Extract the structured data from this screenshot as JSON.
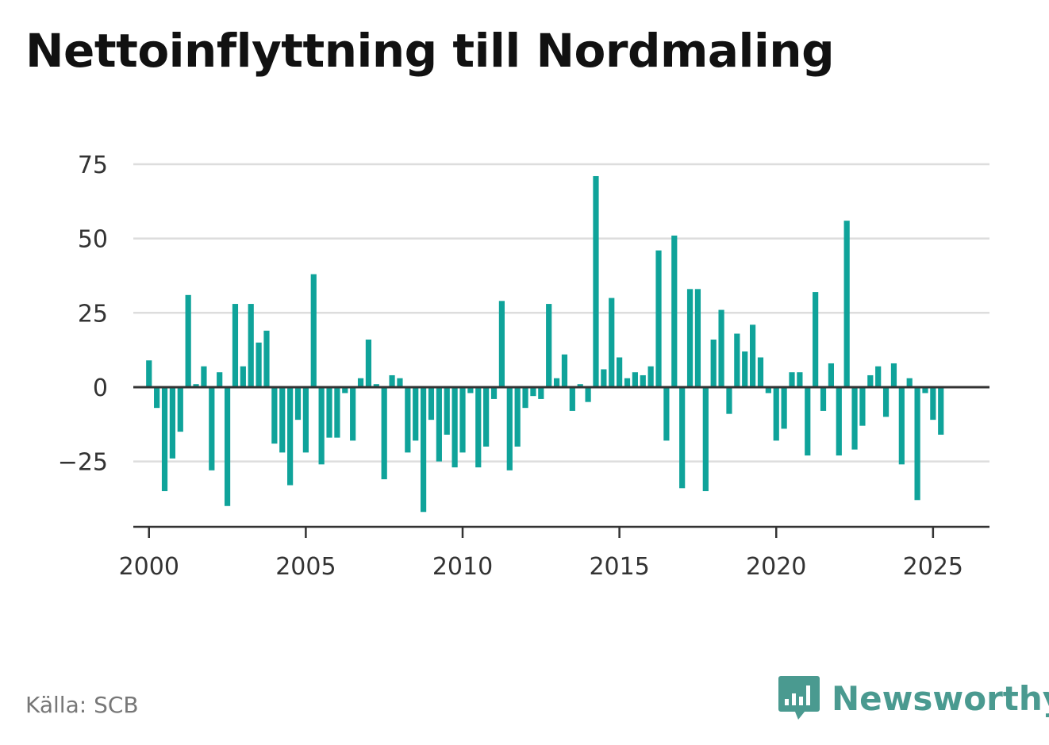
{
  "title": "Nettoinflyttning till Nordmaling",
  "source": "Källa: SCB",
  "brand": {
    "name": "Newsworthy",
    "icon": "bar-chart-speech-bubble-icon",
    "color": "#4a9a90"
  },
  "colors": {
    "bar": "#0fa39a",
    "grid": "#dddddd",
    "axis": "#333333"
  },
  "chart_data": {
    "type": "bar",
    "title": "Nettoinflyttning till Nordmaling",
    "xlabel": "",
    "ylabel": "",
    "grid": true,
    "legend": "none",
    "ylim": [
      -47,
      75
    ],
    "yticks": [
      75,
      50,
      25,
      0,
      -25
    ],
    "ytick_labels": [
      "75",
      "50",
      "25",
      "0",
      "−25"
    ],
    "xlim": [
      1999.5,
      2026.8
    ],
    "xticks": [
      2000,
      2005,
      2010,
      2015,
      2020,
      2025
    ],
    "xtick_labels": [
      "2000",
      "2005",
      "2010",
      "2015",
      "2020",
      "2025"
    ],
    "frequency": "quarterly",
    "x": [
      "2000 Q1",
      "2000 Q2",
      "2000 Q3",
      "2000 Q4",
      "2001 Q1",
      "2001 Q2",
      "2001 Q3",
      "2001 Q4",
      "2002 Q1",
      "2002 Q2",
      "2002 Q3",
      "2002 Q4",
      "2003 Q1",
      "2003 Q2",
      "2003 Q3",
      "2003 Q4",
      "2004 Q1",
      "2004 Q2",
      "2004 Q3",
      "2004 Q4",
      "2005 Q1",
      "2005 Q2",
      "2005 Q3",
      "2005 Q4",
      "2006 Q1",
      "2006 Q2",
      "2006 Q3",
      "2006 Q4",
      "2007 Q1",
      "2007 Q2",
      "2007 Q3",
      "2007 Q4",
      "2008 Q1",
      "2008 Q2",
      "2008 Q3",
      "2008 Q4",
      "2009 Q1",
      "2009 Q2",
      "2009 Q3",
      "2009 Q4",
      "2010 Q1",
      "2010 Q2",
      "2010 Q3",
      "2010 Q4",
      "2011 Q1",
      "2011 Q2",
      "2011 Q3",
      "2011 Q4",
      "2012 Q1",
      "2012 Q2",
      "2012 Q3",
      "2012 Q4",
      "2013 Q1",
      "2013 Q2",
      "2013 Q3",
      "2013 Q4",
      "2014 Q1",
      "2014 Q2",
      "2014 Q3",
      "2014 Q4",
      "2015 Q1",
      "2015 Q2",
      "2015 Q3",
      "2015 Q4",
      "2016 Q1",
      "2016 Q2",
      "2016 Q3",
      "2016 Q4",
      "2017 Q1",
      "2017 Q2",
      "2017 Q3",
      "2017 Q4",
      "2018 Q1",
      "2018 Q2",
      "2018 Q3",
      "2018 Q4",
      "2019 Q1",
      "2019 Q2",
      "2019 Q3",
      "2019 Q4",
      "2020 Q1",
      "2020 Q2",
      "2020 Q3",
      "2020 Q4",
      "2021 Q1",
      "2021 Q2",
      "2021 Q3",
      "2021 Q4",
      "2022 Q1",
      "2022 Q2",
      "2022 Q3",
      "2022 Q4",
      "2023 Q1",
      "2023 Q2",
      "2023 Q3",
      "2023 Q4",
      "2024 Q1",
      "2024 Q2",
      "2024 Q3",
      "2024 Q4",
      "2025 Q1",
      "2025 Q2"
    ],
    "values": [
      9,
      -7,
      -35,
      -24,
      -15,
      31,
      1,
      7,
      -28,
      5,
      -40,
      28,
      7,
      28,
      15,
      19,
      -19,
      -22,
      -33,
      -11,
      -22,
      38,
      -26,
      -17,
      -17,
      -2,
      -18,
      3,
      16,
      1,
      -31,
      4,
      3,
      -22,
      -18,
      -42,
      -11,
      -25,
      -16,
      -27,
      -22,
      -2,
      -27,
      -20,
      -4,
      29,
      -28,
      -20,
      -7,
      -3,
      -4,
      28,
      3,
      11,
      -8,
      1,
      -5,
      71,
      6,
      30,
      10,
      3,
      5,
      4,
      7,
      46,
      -18,
      51,
      -34,
      33,
      33,
      -35,
      16,
      26,
      -9,
      18,
      12,
      21,
      10,
      -2,
      -18,
      -14,
      5,
      5,
      -23,
      32,
      -8,
      8,
      -23,
      56,
      -21,
      -13,
      4,
      7,
      -10,
      8,
      -26,
      3,
      -38,
      -2,
      -11,
      -16
    ]
  }
}
